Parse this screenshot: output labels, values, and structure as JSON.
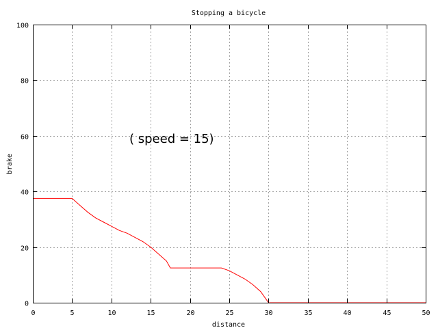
{
  "chart_data": {
    "type": "line",
    "title": "Stopping a bicycle",
    "xlabel": "distance",
    "ylabel": "brake",
    "xlim": [
      0,
      50
    ],
    "ylim": [
      0,
      100
    ],
    "xticks": [
      0,
      5,
      10,
      15,
      20,
      25,
      30,
      35,
      40,
      45,
      50
    ],
    "yticks": [
      0,
      20,
      40,
      60,
      80,
      100
    ],
    "grid": true,
    "annotation": "( speed = 15)",
    "series": [
      {
        "color": "#ff0000",
        "x": [
          0,
          5,
          6,
          7,
          8,
          9,
          10,
          11,
          12,
          13,
          14,
          15,
          16,
          17,
          17.5,
          18,
          20,
          22,
          24,
          25,
          26,
          27,
          28,
          29,
          29.5,
          30,
          35,
          40,
          45,
          50
        ],
        "y": [
          37.5,
          37.5,
          35,
          32.5,
          30.5,
          29,
          27.5,
          26,
          25,
          23.5,
          22,
          20,
          17.5,
          15,
          12.5,
          12.5,
          12.5,
          12.5,
          12.5,
          11.5,
          10,
          8.5,
          6.5,
          4,
          2,
          0,
          0,
          0,
          0,
          0
        ]
      }
    ]
  }
}
